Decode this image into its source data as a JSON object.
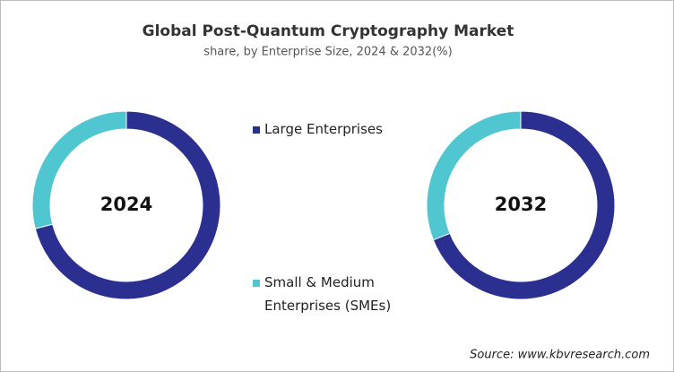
{
  "chart_data": [
    {
      "type": "donut",
      "title": "Global Post-Quantum  Cryptography  Market",
      "subtitle": "share, by Enterprise Size, 2024 & 2032(%)",
      "center_label": "2024",
      "categories": [
        "Large Enterprises",
        "Small & Medium Enterprises (SMEs)"
      ],
      "values": [
        71,
        29
      ],
      "colors": [
        "#2b3090",
        "#4fc6d0"
      ]
    },
    {
      "type": "donut",
      "center_label": "2032",
      "values": [
        69,
        31
      ]
    }
  ],
  "source": "Source: www.kbvresearch.com"
}
